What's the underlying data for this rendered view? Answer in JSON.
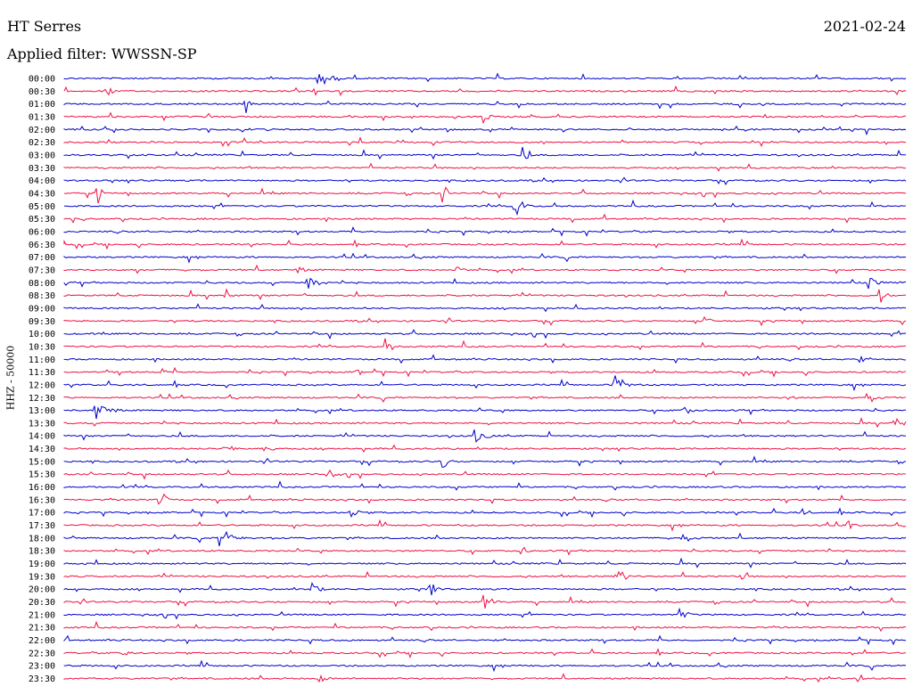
{
  "header": {
    "station": "HT Serres",
    "date": "2021-02-24",
    "filter": "Applied filter: WWSSN-SP"
  },
  "chart_data": {
    "type": "line",
    "ylabel": "HHZ - 50000",
    "colors": [
      "#0000cc",
      "#ee1144"
    ],
    "rows": [
      "00:00",
      "00:30",
      "01:00",
      "01:30",
      "02:00",
      "02:30",
      "03:00",
      "03:30",
      "04:00",
      "04:30",
      "05:00",
      "05:30",
      "06:00",
      "06:30",
      "07:00",
      "07:30",
      "08:00",
      "08:30",
      "09:00",
      "09:30",
      "10:00",
      "10:30",
      "11:00",
      "11:30",
      "12:00",
      "12:30",
      "13:00",
      "13:30",
      "14:00",
      "14:30",
      "15:00",
      "15:30",
      "16:00",
      "16:30",
      "17:00",
      "17:30",
      "18:00",
      "18:30",
      "19:00",
      "19:30",
      "20:00",
      "20:30",
      "21:00",
      "21:30",
      "22:00",
      "22:30",
      "23:00",
      "23:30"
    ]
  }
}
